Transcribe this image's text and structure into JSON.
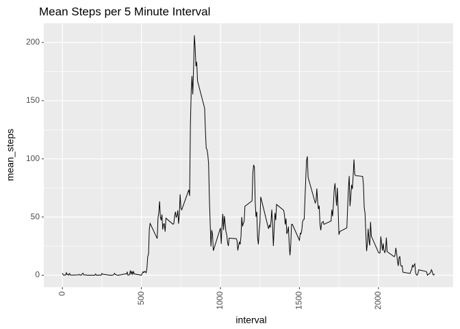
{
  "chart_data": {
    "type": "line",
    "title": "Mean Steps per 5 Minute Interval",
    "x_label": "interval",
    "y_label": "mean_steps",
    "color": "#000000",
    "x": [
      0,
      5,
      10,
      15,
      20,
      25,
      30,
      35,
      40,
      45,
      50,
      55,
      100,
      105,
      110,
      115,
      120,
      125,
      130,
      135,
      140,
      145,
      150,
      155,
      200,
      205,
      210,
      215,
      220,
      225,
      230,
      235,
      240,
      245,
      250,
      255,
      300,
      305,
      310,
      315,
      320,
      325,
      330,
      335,
      340,
      345,
      350,
      355,
      400,
      405,
      410,
      415,
      420,
      425,
      430,
      435,
      440,
      445,
      450,
      455,
      500,
      505,
      510,
      515,
      520,
      525,
      530,
      535,
      540,
      545,
      550,
      555,
      600,
      605,
      610,
      615,
      620,
      625,
      630,
      635,
      640,
      645,
      650,
      655,
      700,
      705,
      710,
      715,
      720,
      725,
      730,
      735,
      740,
      745,
      750,
      755,
      800,
      805,
      810,
      815,
      820,
      825,
      830,
      835,
      840,
      845,
      850,
      855,
      900,
      905,
      910,
      915,
      920,
      925,
      930,
      935,
      940,
      945,
      950,
      955,
      1000,
      1005,
      1010,
      1015,
      1020,
      1025,
      1030,
      1035,
      1040,
      1045,
      1050,
      1055,
      1100,
      1105,
      1110,
      1115,
      1120,
      1125,
      1130,
      1135,
      1140,
      1145,
      1150,
      1155,
      1200,
      1205,
      1210,
      1215,
      1220,
      1225,
      1230,
      1235,
      1240,
      1245,
      1250,
      1255,
      1300,
      1305,
      1310,
      1315,
      1320,
      1325,
      1330,
      1335,
      1340,
      1345,
      1350,
      1355,
      1400,
      1405,
      1410,
      1415,
      1420,
      1425,
      1430,
      1435,
      1440,
      1445,
      1450,
      1455,
      1500,
      1505,
      1510,
      1515,
      1520,
      1525,
      1530,
      1535,
      1540,
      1545,
      1550,
      1555,
      1600,
      1605,
      1610,
      1615,
      1620,
      1625,
      1630,
      1635,
      1640,
      1645,
      1650,
      1655,
      1700,
      1705,
      1710,
      1715,
      1720,
      1725,
      1730,
      1735,
      1740,
      1745,
      1750,
      1755,
      1800,
      1805,
      1810,
      1815,
      1820,
      1825,
      1830,
      1835,
      1840,
      1845,
      1850,
      1855,
      1900,
      1905,
      1910,
      1915,
      1920,
      1925,
      1930,
      1935,
      1940,
      1945,
      1950,
      1955,
      2000,
      2005,
      2010,
      2015,
      2020,
      2025,
      2030,
      2035,
      2040,
      2045,
      2050,
      2055,
      2100,
      2105,
      2110,
      2115,
      2120,
      2125,
      2130,
      2135,
      2140,
      2145,
      2150,
      2155,
      2200,
      2205,
      2210,
      2215,
      2220,
      2225,
      2230,
      2235,
      2240,
      2245,
      2250,
      2255,
      2300,
      2305,
      2310,
      2315,
      2320,
      2325,
      2330,
      2335,
      2340,
      2345,
      2350,
      2355
    ],
    "values": [
      1.7,
      0.3,
      0.1,
      0.2,
      0.1,
      2.1,
      0.5,
      0.9,
      0,
      1.5,
      0.3,
      0.1,
      0.3,
      0.7,
      0.2,
      0.3,
      0,
      1.1,
      1.8,
      0.2,
      0.2,
      0.4,
      0.3,
      0,
      0,
      0,
      1.1,
      0,
      0,
      0.1,
      0,
      0.2,
      0,
      0,
      1.5,
      0.9,
      0,
      0,
      0,
      0,
      0.2,
      0.6,
      1.6,
      0.6,
      0.5,
      0.1,
      0,
      0,
      1.2,
      0.9,
      2.6,
      0,
      0.3,
      0.4,
      4.1,
      0.7,
      3.5,
      0.8,
      3.1,
      1.1,
      0,
      1.6,
      3,
      2.2,
      3.3,
      3,
      2.1,
      6.1,
      16,
      18.3,
      39.5,
      44.5,
      31.5,
      49.3,
      53.8,
      63.5,
      50,
      47.1,
      52.2,
      39.3,
      44,
      44.2,
      37.4,
      49,
      43.8,
      44.4,
      50.5,
      54.5,
      49.9,
      51,
      55.7,
      44.3,
      52.3,
      69.5,
      57.8,
      56.2,
      73.4,
      68.2,
      129.4,
      157.5,
      171.2,
      155.4,
      177.3,
      206.2,
      195.9,
      179.6,
      183.4,
      167,
      143.5,
      124,
      109.1,
      108.1,
      103.7,
      96,
      66.2,
      45.2,
      24.8,
      38.8,
      35,
      21.1,
      40.6,
      27,
      42.4,
      52.7,
      38.9,
      50.8,
      44.3,
      37.4,
      34.7,
      28.3,
      25.1,
      31.9,
      31.4,
      29.7,
      21.3,
      25.5,
      28.4,
      26.5,
      33.4,
      50,
      42,
      44.6,
      46,
      59.2,
      63.9,
      87.7,
      94.8,
      92.8,
      63.4,
      50.2,
      54.5,
      32.4,
      26.5,
      37.7,
      45.1,
      67.3,
      42.3,
      39.9,
      43.3,
      41,
      46.2,
      56.4,
      42.8,
      25.1,
      40,
      53.5,
      47.3,
      60.8,
      55.8,
      52,
      43.6,
      48.7,
      35.5,
      37.5,
      41.8,
      27.5,
      17.1,
      26.1,
      43.6,
      43.8,
      30,
      36.1,
      35.5,
      38.8,
      46,
      47.8,
      48.1,
      65.3,
      82.9,
      98.7,
      102.1,
      84,
      62.1,
      64.1,
      74.5,
      63.2,
      56.9,
      59.8,
      43.9,
      38.6,
      44.7,
      45.5,
      46.2,
      43.7,
      46.6,
      56.3,
      50.7,
      61.2,
      73.4,
      79,
      68.9,
      59.7,
      75.1,
      56.5,
      34.8,
      37.5,
      40.7,
      58,
      74.7,
      85.3,
      59.3,
      67.8,
      77.7,
      74.2,
      85.3,
      99.5,
      86.6,
      85.6,
      84.9,
      77.8,
      58,
      53.4,
      36.3,
      20.7,
      27.4,
      40,
      30.2,
      25.5,
      45.7,
      33.5,
      19.6,
      19,
      19.3,
      33.3,
      26.8,
      21.2,
      27.3,
      21.3,
      19.5,
      21.3,
      32.3,
      20.2,
      15.9,
      17.2,
      23.5,
      19.2,
      12.5,
      8,
      14.7,
      16.3,
      8.7,
      7.8,
      8.1,
      2.6,
      1.5,
      3.7,
      4.8,
      8.5,
      7.1,
      8.7,
      9.8,
      2.2,
      0.3,
      0.1,
      1.6,
      4.6,
      3.3,
      2.8,
      0,
      0.8,
      1,
      1.6,
      2.6,
      4.7,
      3.3,
      0.6,
      0.2,
      1.1
    ],
    "xlim": [
      -117.75,
      2472.75
    ],
    "ylim": [
      -10.3,
      216.5
    ],
    "xticks": [
      0,
      500,
      1000,
      1500,
      2000
    ],
    "yticks": [
      0,
      50,
      100,
      150,
      200
    ],
    "x_minor_ticks": [
      250,
      750,
      1250,
      1750,
      2250
    ],
    "y_minor_ticks": [
      25,
      75,
      125,
      175
    ],
    "grid": true
  }
}
